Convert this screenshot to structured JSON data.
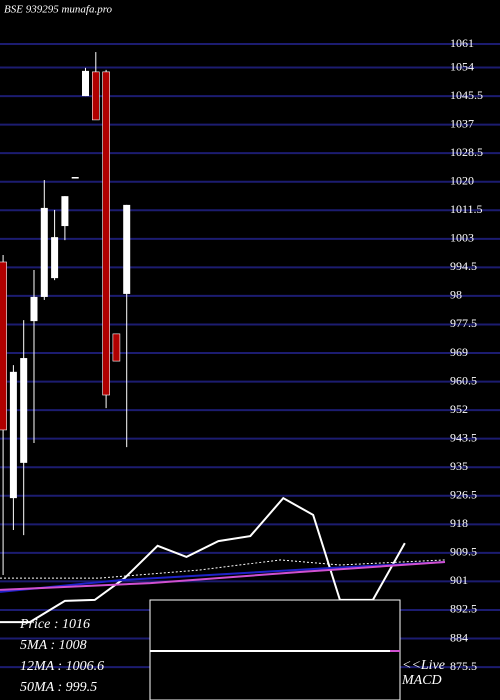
{
  "chart_data": {
    "type": "candlestick",
    "title": "BSE 939295 munafa.pro",
    "open": [
      996.1,
      925.8,
      936.3,
      978.5,
      985.7,
      991.3,
      1006.8,
      1021.4,
      1045.5,
      1052.7,
      1052.7,
      974.7,
      986.6
    ],
    "high": [
      998.2,
      965.4,
      978.8,
      993.7,
      1020.5,
      1011.6,
      1015.7,
      1021.4,
      1053.9,
      1058.6,
      1053.3,
      974.7,
      1013.1
    ],
    "low": [
      902.9,
      916.3,
      914.8,
      942.2,
      984.8,
      990.7,
      1002.6,
      1021.4,
      1045.5,
      1038.4,
      952.6,
      966.6,
      941.0
    ],
    "close": [
      946.1,
      963.4,
      967.5,
      985.7,
      1012.2,
      1003.5,
      1015.7,
      1021.4,
      1053.0,
      1038.4,
      956.5,
      966.6,
      1013.1
    ],
    "up_color": "#ffffff",
    "down_color": "#b00000",
    "lines": [
      {
        "color": "#ffffff",
        "dashed": false,
        "x": [
          -0.3,
          2.6,
          6.0,
          8.9,
          11.8,
          15.0,
          17.8,
          20.9,
          24.0,
          27.2,
          30.1,
          32.7,
          35.9,
          39.0
        ],
        "values": [
          888.9,
          888.9,
          895.2,
          895.5,
          902.0,
          911.6,
          908.3,
          913.0,
          914.5,
          925.8,
          920.8,
          895.5,
          895.5,
          912.4
        ]
      },
      {
        "color": "#1e22c8",
        "dashed": false,
        "x": [
          -0.3,
          11.4,
          31.8,
          42.9
        ],
        "values": [
          897.9,
          901.4,
          905.0,
          906.8
        ]
      },
      {
        "color": "#d050d0",
        "dashed": false,
        "x": [
          -0.3,
          14.3,
          28.8,
          42.9
        ],
        "values": [
          898.5,
          900.5,
          903.8,
          906.8
        ]
      },
      {
        "color": "#ffffff",
        "dashed": true,
        "x": [
          -0.3,
          9.4,
          19.1,
          26.9,
          32.7,
          42.9
        ],
        "values": [
          902.0,
          902.0,
          904.4,
          907.4,
          905.9,
          907.4
        ]
      }
    ],
    "xlim": [
      -0.3,
      42.9
    ],
    "ylim": [
      865.7,
      1074.1
    ],
    "yticks": [
      1061,
      1054,
      1045.5,
      1037,
      1028.5,
      1020,
      1011.5,
      1003,
      994.5,
      {
        "value": 986,
        "label": "98"
      },
      977.5,
      969,
      960.5,
      952,
      943.5,
      935,
      926.5,
      918,
      909.5,
      901,
      892.5,
      884,
      875.5
    ],
    "grid": true,
    "grid_color": "#1c1c70",
    "legend": [
      "Price   : 1016",
      "5MA : 1008",
      "12MA : 1006.6",
      "50MA : 999.5"
    ],
    "live": "<<Live",
    "indicator": "MACD"
  }
}
